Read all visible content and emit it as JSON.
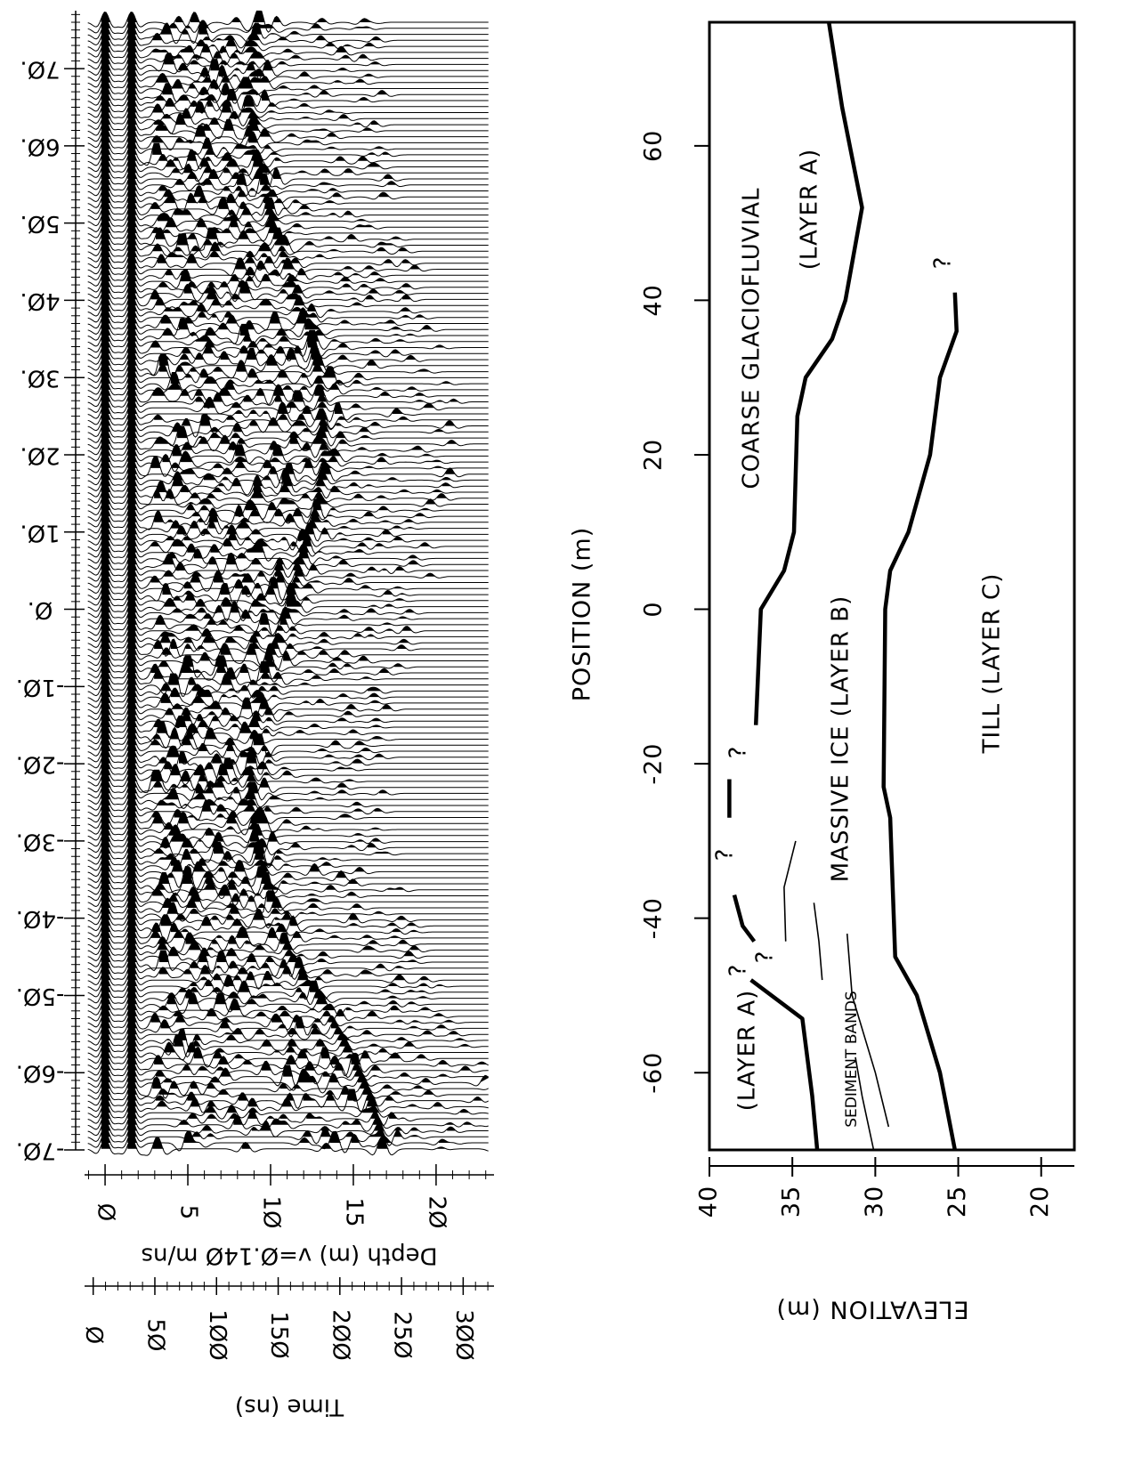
{
  "chart_data": [
    {
      "type": "wiggle",
      "x_label": "Depth (m) v=Ø.14Ø m/ns",
      "x2_label": "Time (ns)",
      "xlim": [
        -1.24,
        23.5
      ],
      "xticks": [
        {
          "value": 0,
          "label": "Ø"
        },
        5,
        {
          "value": 10,
          "label": "1Ø"
        },
        15,
        {
          "value": 20,
          "label": "2Ø"
        }
      ],
      "x2lim": [
        -7,
        325
      ],
      "x2ticks": [
        {
          "value": 0,
          "label": "Ø"
        },
        {
          "value": 50,
          "label": "5Ø"
        },
        {
          "value": 100,
          "label": "1ØØ"
        },
        {
          "value": 150,
          "label": "15Ø"
        },
        {
          "value": 200,
          "label": "2ØØ"
        },
        {
          "value": 250,
          "label": "25Ø"
        },
        {
          "value": 300,
          "label": "3ØØ"
        }
      ],
      "ylim": [
        -70,
        77.5
      ],
      "yticks": [
        {
          "value": 70,
          "label": "7Ø."
        },
        {
          "value": 60,
          "label": "6Ø."
        },
        {
          "value": 50,
          "label": "5Ø."
        },
        {
          "value": 40,
          "label": "4Ø."
        },
        {
          "value": 30,
          "label": "3Ø."
        },
        {
          "value": 20,
          "label": "2Ø."
        },
        {
          "value": 10,
          "label": "1Ø."
        },
        {
          "value": 0,
          "label": "Ø."
        },
        {
          "value": -10,
          "label": "-1Ø."
        },
        {
          "value": -20,
          "label": "-2Ø."
        },
        {
          "value": -30,
          "label": "-3Ø."
        },
        {
          "value": -40,
          "label": "-4Ø."
        },
        {
          "value": -50,
          "label": "-5Ø."
        },
        {
          "value": -60,
          "label": "-6Ø."
        },
        {
          "value": -70,
          "label": "-7Ø."
        }
      ],
      "color": "#000"
    },
    {
      "type": "line",
      "x_label": "POSITION (m)",
      "y_label": "ELEVATION (m)",
      "xlim": [
        -70,
        76
      ],
      "xticks": [
        -60,
        -40,
        -20,
        0,
        20,
        40,
        60
      ],
      "ylim": [
        40,
        18
      ],
      "yticks": [
        40,
        35,
        30,
        25,
        20
      ],
      "series": [
        {
          "color": "#000",
          "line_width": 4.5,
          "x": [
            76,
            65,
            52,
            40,
            35,
            30,
            25,
            10,
            5,
            0,
            -15,
            -19,
            -22,
            -27,
            -32,
            -37,
            -41,
            -43,
            -45,
            -48,
            -53,
            -63,
            -70
          ],
          "values": [
            32.8,
            32.0,
            30.8,
            31.8,
            32.6,
            34.2,
            34.7,
            34.9,
            35.5,
            36.9,
            37.2,
            null,
            38.8,
            38.8,
            null,
            38.5,
            38.0,
            37.3,
            null,
            37.5,
            34.4,
            33.8,
            33.5
          ]
        },
        {
          "color": "#000",
          "line_width": 4.5,
          "x": [
            41,
            36,
            30,
            20,
            10,
            5,
            0,
            -23,
            -27,
            -45,
            -50,
            -60,
            -70
          ],
          "values": [
            25.2,
            25.1,
            26.1,
            26.7,
            28.0,
            29.1,
            29.4,
            29.5,
            29.1,
            28.8,
            27.5,
            26.1,
            25.2
          ]
        },
        {
          "color": "#000",
          "line_width": 1.6,
          "x": [
            -30,
            -36,
            -43
          ],
          "values": [
            34.8,
            35.5,
            35.4
          ]
        },
        {
          "color": "#000",
          "line_width": 1.6,
          "x": [
            -38,
            -43,
            -48
          ],
          "values": [
            33.7,
            33.4,
            33.2
          ]
        },
        {
          "color": "#000",
          "line_width": 1.6,
          "x": [
            -42,
            -50,
            -60,
            -67
          ],
          "values": [
            31.7,
            31.4,
            30.0,
            29.2
          ]
        },
        {
          "color": "#000",
          "line_width": 1.6,
          "x": [
            -58,
            -63,
            -70
          ],
          "values": [
            31.2,
            30.8,
            30.1
          ]
        }
      ],
      "annotations": [
        "COARSE GLACIOFLUVIAL",
        "(LAYER A)",
        "MASSIVE ICE (LAYER B)",
        "TILL (LAYER C)",
        "(LAYER A)",
        "SEDIMENT BANDS",
        "?",
        "?",
        "?",
        "?",
        "?"
      ]
    }
  ]
}
